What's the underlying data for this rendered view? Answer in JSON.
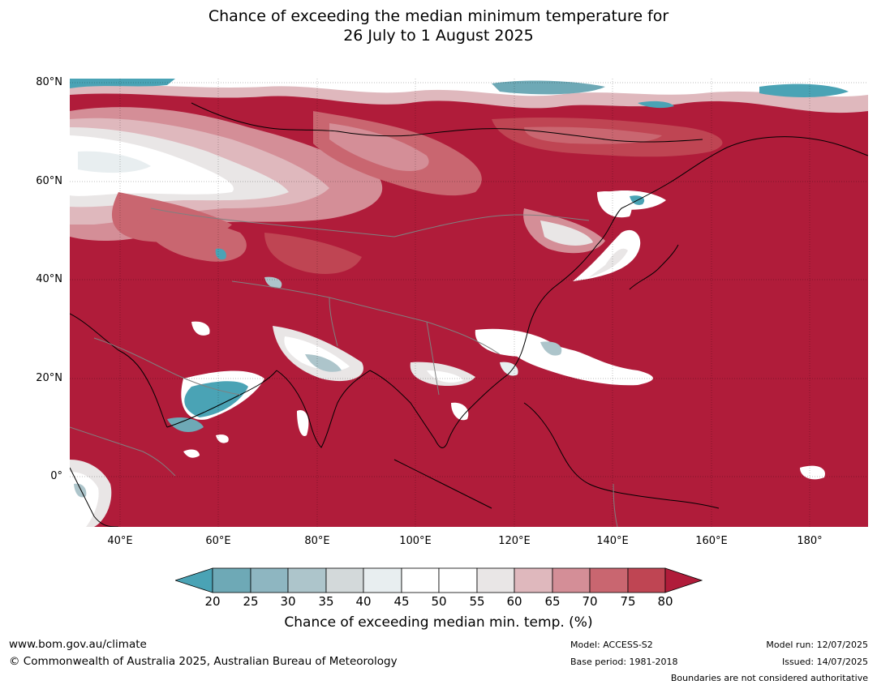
{
  "title": {
    "line1": "Chance of exceeding the median minimum temperature for",
    "line2": "26 July to 1 August 2025"
  },
  "axes": {
    "lat_labels": [
      "80°N",
      "60°N",
      "40°N",
      "20°N",
      "0°"
    ],
    "lon_labels": [
      "40°E",
      "60°E",
      "80°E",
      "100°E",
      "120°E",
      "140°E",
      "160°E",
      "180°"
    ]
  },
  "map": {
    "region": "Asia",
    "dominant_category": "80+",
    "colors": {
      "below_20": "#4aa3b5",
      "20_25": "#6ea9b6",
      "25_30": "#8eb6c1",
      "30_35": "#adc5cb",
      "35_40": "#d3d9da",
      "40_45": "#e8eef0",
      "45_55": "#ffffff",
      "55_60": "#e9e6e6",
      "60_65": "#dfb8bd",
      "65_70": "#d48e97",
      "70_75": "#c96670",
      "75_80": "#bf4553",
      "80_plus": "#b01c3a"
    }
  },
  "colorbar": {
    "ticks": [
      "20",
      "25",
      "30",
      "35",
      "40",
      "45",
      "50",
      "55",
      "60",
      "65",
      "70",
      "75",
      "80"
    ],
    "label": "Chance of exceeding median min. temp. (%)"
  },
  "footer": {
    "website": "www.bom.gov.au/climate",
    "copyright": "© Commonwealth of Australia 2025, Australian Bureau of Meteorology",
    "model": "Model: ACCESS-S2",
    "base_period": "Base period: 1981-2018",
    "model_run": "Model run: 12/07/2025",
    "issued": "Issued: 14/07/2025",
    "boundaries": "Boundaries are not considered authoritative"
  }
}
